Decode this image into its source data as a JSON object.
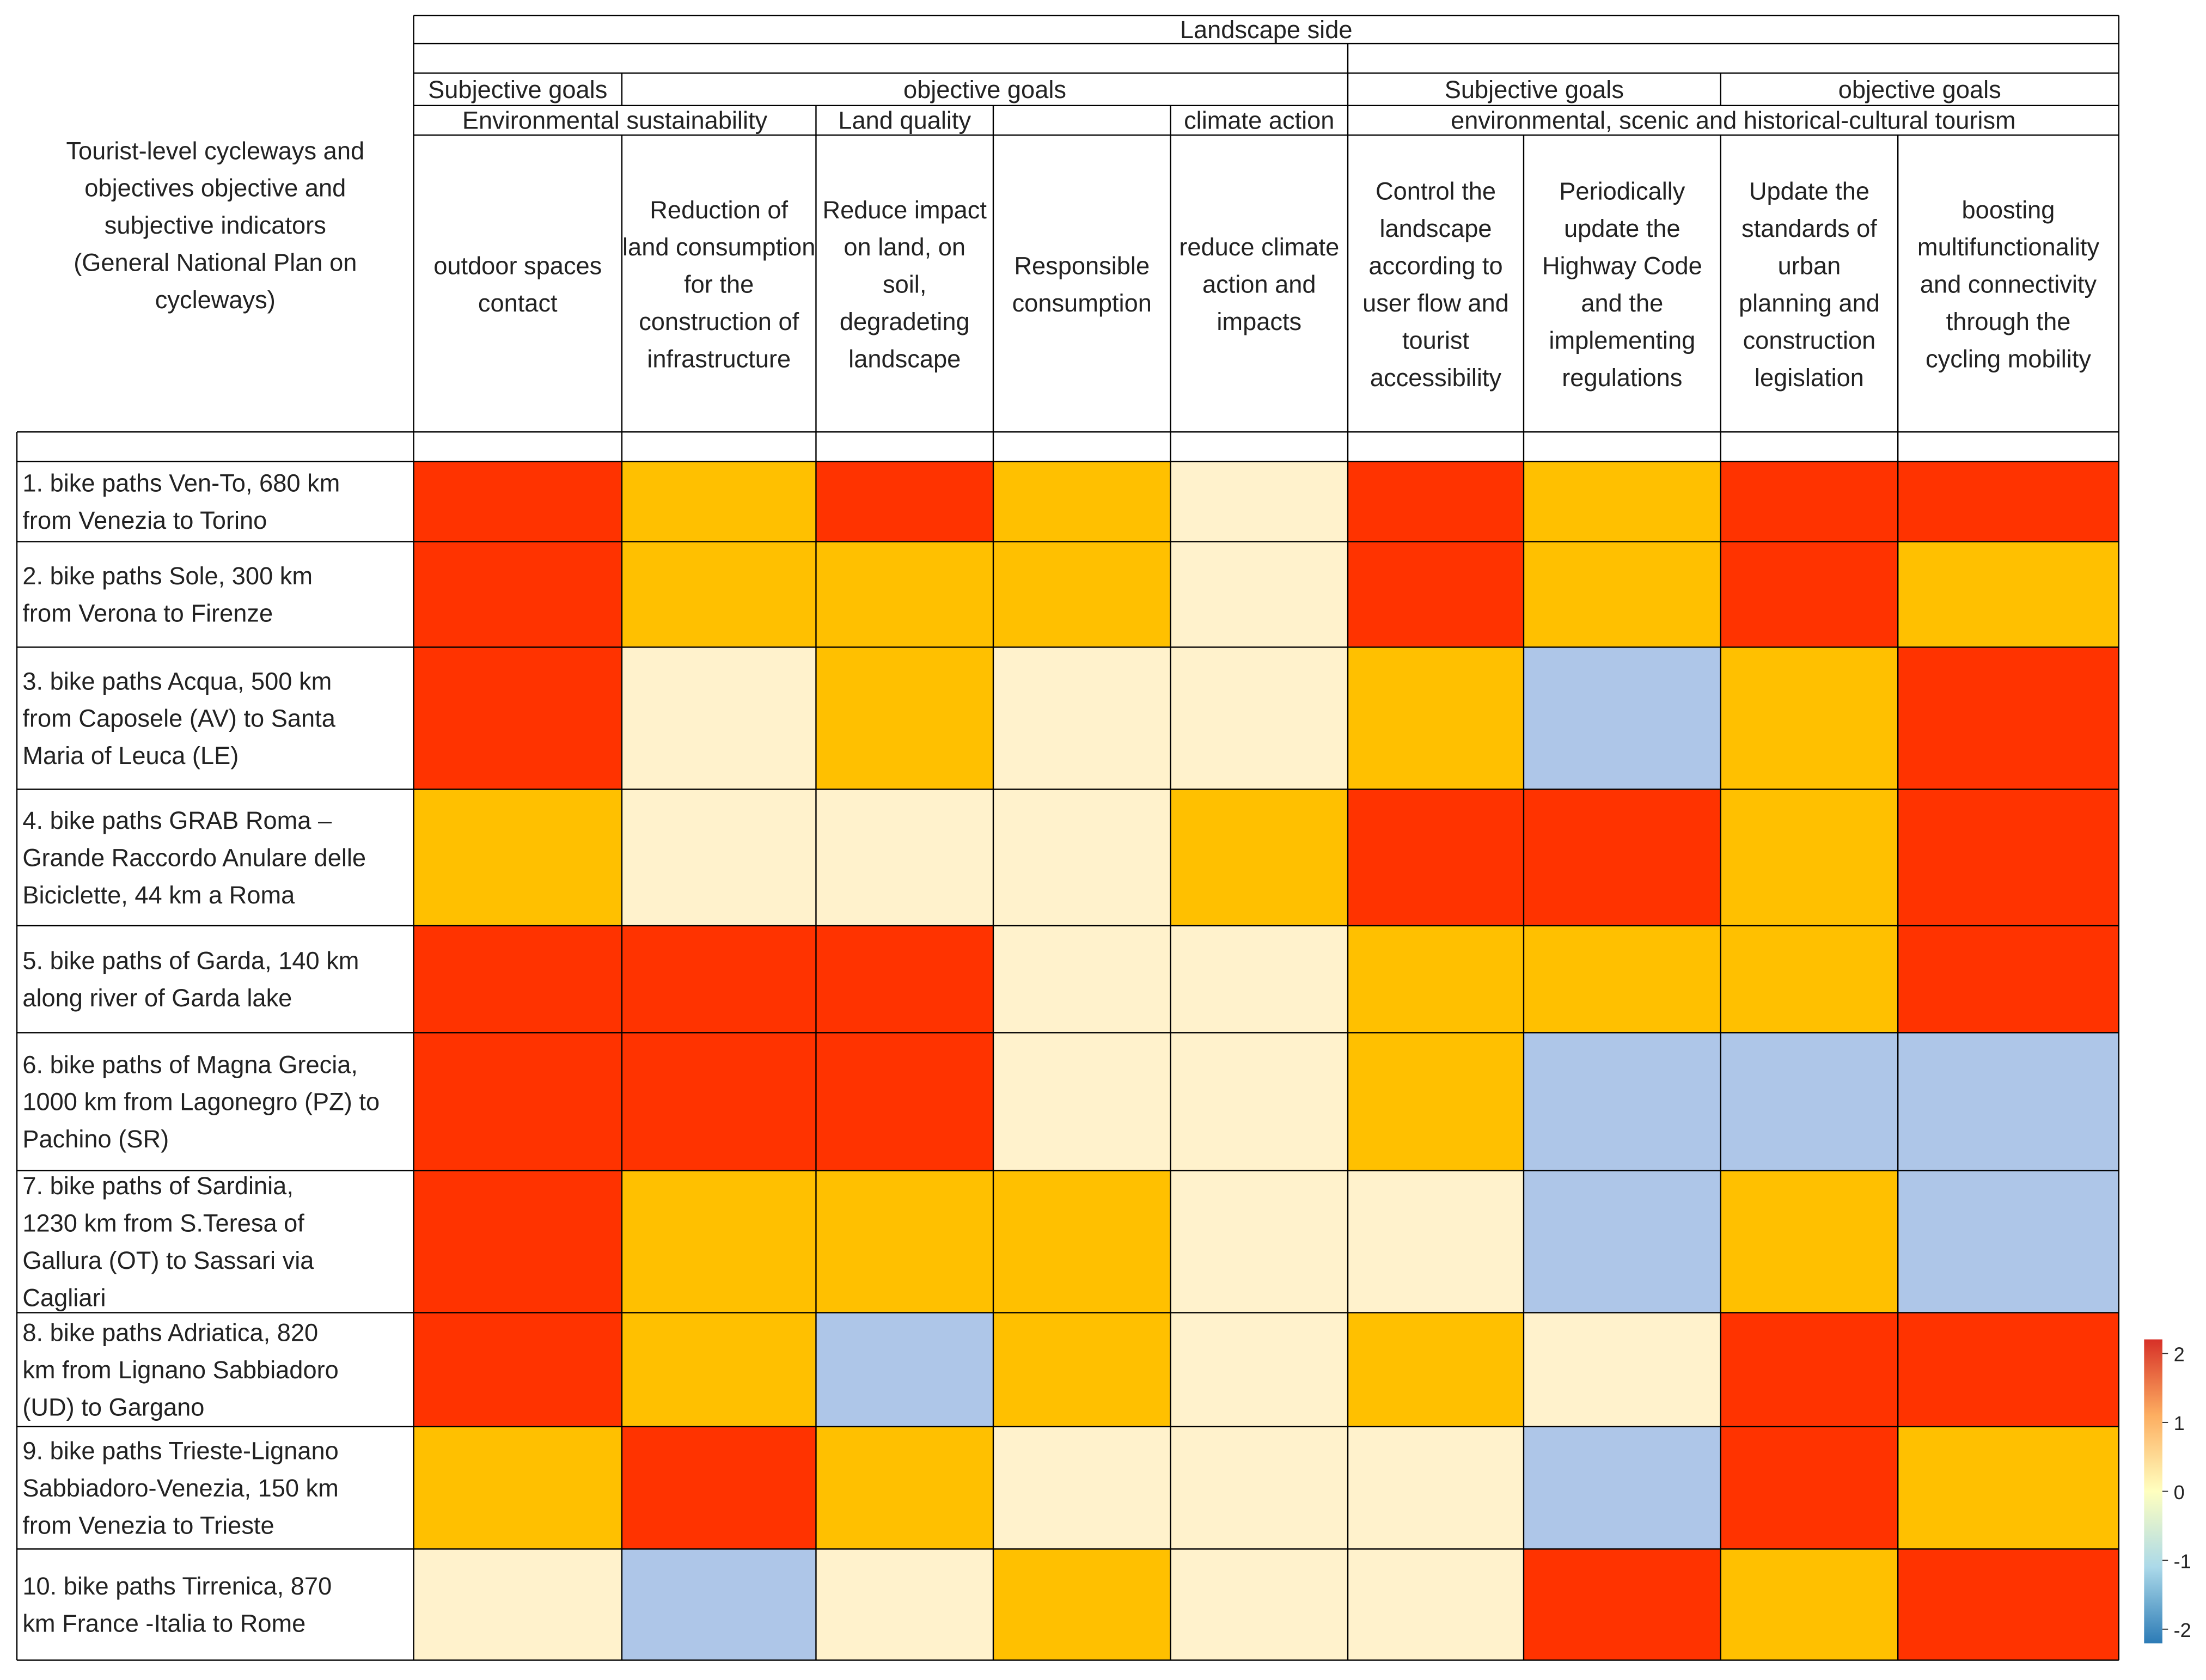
{
  "chart_data": {
    "type": "heatmap",
    "corner_label": "Tourist-level cycleways and objectives objective and subjective indicators (General National Plan on cycleways)",
    "header": {
      "side": "Landscape side",
      "goal_groups": [
        "Subjective goals",
        "objective goals",
        "Subjective goals",
        "objective goals"
      ],
      "themes": [
        "Environmental sustainability",
        "Land quality",
        "climate action",
        "environmental, scenic and historical-cultural tourism"
      ]
    },
    "columns": [
      "outdoor spaces contact",
      "Reduction of land consumption for the construction of infrastructure",
      "Reduce impact on land, on soil, degradeting landscape",
      "Responsible consumption",
      "reduce climate action and impacts",
      "Control the landscape according to user flow and tourist accessibility",
      "Periodically update the Highway Code and the implementing regulations",
      "Update the standards of urban planning and construction legislation",
      "boosting multifunctionality and connectivity through the cycling mobility"
    ],
    "rows": [
      "1. bike paths Ven-To, 680 km from Venezia to Torino",
      "2. bike paths Sole, 300 km from Verona to Firenze",
      "3. bike paths Acqua, 500 km from Caposele (AV) to Santa Maria of Leuca (LE)",
      "4. bike paths GRAB Roma – Grande Raccordo Anulare delle Biciclette, 44 km a Roma",
      "5. bike paths of Garda, 140 km along river of Garda lake",
      "6. bike paths of Magna Grecia, 1000 km from Lagonegro (PZ) to Pachino (SR)",
      "7. bike paths of Sardinia, 1230 km from S.Teresa of Gallura (OT) to Sassari via Cagliari",
      "8. bike paths Adriatica, 820 km from Lignano Sabbiadoro (UD) to Gargano",
      "9. bike paths Trieste-Lignano Sabbiadoro-Venezia, 150 km from Venezia to Trieste",
      "10. bike paths Tirrenica, 870 km France -Italia to Rome"
    ],
    "values": [
      [
        2,
        1,
        2,
        1,
        0,
        2,
        1,
        2,
        2
      ],
      [
        2,
        1,
        1,
        1,
        0,
        2,
        1,
        2,
        1
      ],
      [
        2,
        0,
        1,
        0,
        0,
        1,
        -1,
        1,
        2
      ],
      [
        1,
        0,
        0,
        0,
        1,
        2,
        2,
        1,
        2
      ],
      [
        2,
        2,
        2,
        0,
        0,
        1,
        1,
        1,
        2
      ],
      [
        2,
        2,
        2,
        0,
        0,
        1,
        -1,
        -1,
        -1
      ],
      [
        2,
        1,
        1,
        1,
        0,
        0,
        -1,
        1,
        -1
      ],
      [
        2,
        1,
        -1,
        1,
        0,
        1,
        0,
        2,
        2
      ],
      [
        1,
        2,
        1,
        0,
        0,
        0,
        -1,
        2,
        1
      ],
      [
        0,
        -1,
        0,
        1,
        0,
        0,
        2,
        1,
        2
      ]
    ],
    "color_scale": {
      "min": -2,
      "max": 2,
      "ticks": [
        "2",
        "1",
        "0",
        "-1",
        "-2"
      ],
      "colors": {
        "2": "#FF3300",
        "1": "#FFC000",
        "0": "#FFF2CC",
        "-1": "#AEC6E8"
      },
      "gradient": [
        "#D73027",
        "#FDAE61",
        "#FFFFBF",
        "#ABD9E9",
        "#2C7BB6"
      ]
    }
  }
}
